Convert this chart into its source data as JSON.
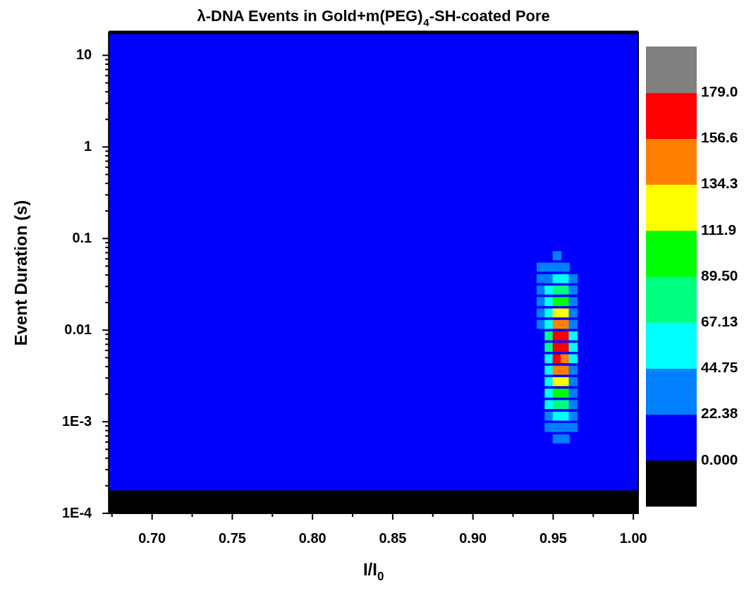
{
  "chart_data": {
    "type": "scatter",
    "title": "λ-DNA Events in Gold+m(PEG)$_{4}$-SH-coated Pore",
    "xlabel": "I/I$_{0}$",
    "ylabel": "Event Duration (s)",
    "log": "y",
    "marker": "square",
    "xlim": [
      0.673,
      1.003
    ],
    "ylim": [
      0.0001,
      17.78
    ],
    "xticks": [
      {
        "value": 0.7,
        "label": "0.70"
      },
      {
        "value": 0.75,
        "label": "0.75"
      },
      {
        "value": 0.8,
        "label": "0.80"
      },
      {
        "value": 0.85,
        "label": "0.85"
      },
      {
        "value": 0.9,
        "label": "0.90"
      },
      {
        "value": 0.95,
        "label": "0.95"
      },
      {
        "value": 1,
        "label": "1.00"
      },
      {
        "value": 0.675,
        "label": null
      },
      {
        "value": 0.725,
        "label": null
      },
      {
        "value": 0.775,
        "label": null
      },
      {
        "value": 0.825,
        "label": null
      },
      {
        "value": 0.875,
        "label": null
      },
      {
        "value": 0.925,
        "label": null
      },
      {
        "value": 0.975,
        "label": null
      }
    ],
    "yticks": [
      {
        "value": 0.0001,
        "label": "1E-4"
      },
      {
        "value": 0.001,
        "label": "1E-3"
      },
      0.01,
      0.1,
      1,
      10,
      {
        "value": 0.0002,
        "label": null
      },
      {
        "value": 0.0003,
        "label": null
      },
      {
        "value": 0.0004,
        "label": null
      },
      {
        "value": 0.0005,
        "label": null
      },
      {
        "value": 0.0006,
        "label": null
      },
      {
        "value": 0.0007,
        "label": null
      },
      {
        "value": 0.0008,
        "label": null
      },
      {
        "value": 0.0009,
        "label": null
      },
      {
        "value": 0.002,
        "label": null
      },
      {
        "value": 0.003,
        "label": null
      },
      {
        "value": 0.004,
        "label": null
      },
      {
        "value": 0.005,
        "label": null
      },
      {
        "value": 0.006,
        "label": null
      },
      {
        "value": 0.007,
        "label": null
      },
      {
        "value": 0.008,
        "label": null
      },
      {
        "value": 0.009,
        "label": null
      },
      {
        "value": 0.02,
        "label": null
      },
      {
        "value": 0.03,
        "label": null
      },
      {
        "value": 0.04,
        "label": null
      },
      {
        "value": 0.05,
        "label": null
      },
      {
        "value": 0.06,
        "label": null
      },
      {
        "value": 0.07,
        "label": null
      },
      {
        "value": 0.08,
        "label": null
      },
      {
        "value": 0.09,
        "label": null
      },
      {
        "value": 0.2,
        "label": null
      },
      {
        "value": 0.3,
        "label": null
      },
      {
        "value": 0.4,
        "label": null
      },
      {
        "value": 0.5,
        "label": null
      },
      {
        "value": 0.6,
        "label": null
      },
      {
        "value": 0.7,
        "label": null
      },
      {
        "value": 0.8,
        "label": null
      },
      {
        "value": 0.9,
        "label": null
      },
      {
        "value": 2,
        "label": null
      },
      {
        "value": 3,
        "label": null
      },
      {
        "value": 4,
        "label": null
      },
      {
        "value": 5,
        "label": null
      },
      {
        "value": 6,
        "label": null
      },
      {
        "value": 7,
        "label": null
      },
      {
        "value": 8,
        "label": null
      },
      {
        "value": 9,
        "label": null
      }
    ],
    "bands": [
      {
        "axis": "y",
        "from": 0.0001778,
        "to": 17.78,
        "color": "#0000ff"
      }
    ],
    "clim": [
      -22.38,
      201.38
    ],
    "cticks": [
      {
        "value": 0,
        "label": "0.000"
      },
      22.38,
      44.75,
      67.13,
      {
        "value": 89.5,
        "label": "89.50"
      },
      111.9,
      134.3,
      156.6,
      {
        "value": 179,
        "label": "179.0"
      }
    ],
    "x": [
      0.9525,
      0.9425,
      0.9475,
      0.9525,
      0.9575,
      0.9425,
      0.9475,
      0.9525,
      0.9575,
      0.9625,
      0.9425,
      0.9475,
      0.9525,
      0.9575,
      0.9625,
      0.9425,
      0.9475,
      0.9525,
      0.9575,
      0.9625,
      0.9425,
      0.9475,
      0.9525,
      0.9575,
      0.9625,
      0.9425,
      0.9475,
      0.9525,
      0.9575,
      0.9625,
      0.9475,
      0.9525,
      0.9575,
      0.9625,
      0.9475,
      0.9525,
      0.9575,
      0.9625,
      0.9475,
      0.9525,
      0.9575,
      0.9625,
      0.9475,
      0.9525,
      0.9575,
      0.9625,
      0.9475,
      0.9525,
      0.9575,
      0.9625,
      0.9475,
      0.9525,
      0.9575,
      0.9625,
      0.9475,
      0.9525,
      0.9575,
      0.9625,
      0.9475,
      0.9525,
      0.9575,
      0.9625,
      0.9475,
      0.9525,
      0.9575,
      0.9625,
      0.9525,
      0.9575
    ],
    "values": [
      0.0649,
      0.0487,
      0.0487,
      0.0487,
      0.0487,
      0.0365,
      0.0365,
      0.0365,
      0.0365,
      0.0365,
      0.0274,
      0.0274,
      0.0274,
      0.0274,
      0.0274,
      0.0205,
      0.0205,
      0.0205,
      0.0205,
      0.0205,
      0.0154,
      0.0154,
      0.0154,
      0.0154,
      0.0154,
      0.01155,
      0.01155,
      0.01155,
      0.01155,
      0.01155,
      0.00866,
      0.00866,
      0.00866,
      0.00866,
      0.00649,
      0.00649,
      0.00649,
      0.00649,
      0.00487,
      0.00487,
      0.00487,
      0.00487,
      0.00365,
      0.00365,
      0.00365,
      0.00365,
      0.00274,
      0.00274,
      0.00274,
      0.00274,
      0.00205,
      0.00205,
      0.00205,
      0.00205,
      0.00154,
      0.00154,
      0.00154,
      0.00154,
      0.00115,
      0.00115,
      0.00115,
      0.00115,
      0.000866,
      0.000866,
      0.000866,
      0.000866,
      0.000649,
      0.000649
    ],
    "cvalues": [
      23,
      23,
      23,
      23,
      23,
      23,
      23,
      45,
      45,
      23,
      23,
      45,
      68,
      68,
      23,
      23,
      45,
      90,
      90,
      23,
      23,
      45,
      112,
      112,
      23,
      23,
      45,
      135,
      135,
      23,
      68,
      157,
      157,
      45,
      68,
      157,
      157,
      45,
      45,
      157,
      135,
      45,
      45,
      135,
      135,
      23,
      45,
      112,
      112,
      23,
      45,
      90,
      90,
      23,
      45,
      68,
      68,
      23,
      23,
      45,
      45,
      23,
      23,
      23,
      23,
      23,
      23,
      23
    ]
  }
}
